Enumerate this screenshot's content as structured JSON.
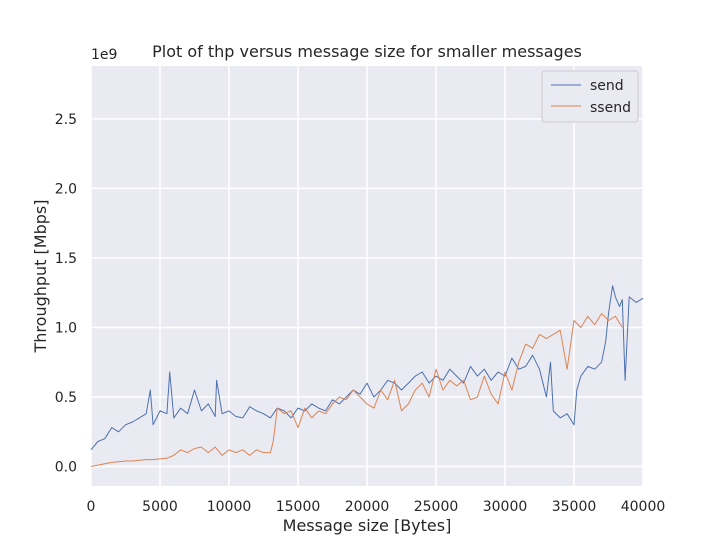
{
  "chart_data": {
    "type": "line",
    "title": "Plot of thp versus message size for smaller messages",
    "xlabel": "Message size [Bytes]",
    "ylabel": "Throughput [Mbps]",
    "y_offset_label": "1e9",
    "xlim": [
      0,
      40000
    ],
    "ylim": [
      -0.14,
      2.88
    ],
    "x_ticks": [
      0,
      5000,
      10000,
      15000,
      20000,
      25000,
      30000,
      35000,
      40000
    ],
    "x_tick_labels": [
      "0",
      "5000",
      "10000",
      "15000",
      "20000",
      "25000",
      "30000",
      "35000",
      "40000"
    ],
    "y_ticks": [
      0.0,
      0.5,
      1.0,
      1.5,
      2.0,
      2.5
    ],
    "y_tick_labels": [
      "0.0",
      "0.5",
      "1.0",
      "1.5",
      "2.0",
      "2.5"
    ],
    "grid": true,
    "legend_position": "top-right",
    "colors": {
      "plot_bg": "#eaeaf2",
      "grid": "#ffffff",
      "send": "#4c72b0",
      "ssend": "#dd8452",
      "text": "#262626"
    },
    "series": [
      {
        "name": "send",
        "x": [
          0,
          500,
          1000,
          1500,
          2000,
          2500,
          3000,
          3500,
          4000,
          4300,
          4500,
          5000,
          5500,
          5700,
          6000,
          6500,
          7000,
          7500,
          8000,
          8500,
          9000,
          9100,
          9500,
          10000,
          10500,
          11000,
          11500,
          12000,
          12500,
          13000,
          13500,
          14000,
          14500,
          15000,
          15500,
          16000,
          16500,
          17000,
          17500,
          18000,
          18500,
          19000,
          19500,
          20000,
          20500,
          21000,
          21500,
          22000,
          22500,
          23000,
          23500,
          24000,
          24500,
          25000,
          25500,
          26000,
          26500,
          27000,
          27500,
          28000,
          28500,
          29000,
          29500,
          30000,
          30500,
          31000,
          31500,
          32000,
          32500,
          33000,
          33300,
          33500,
          34000,
          34500,
          35000,
          35200,
          35500,
          36000,
          36500,
          37000,
          37300,
          37500,
          37800,
          38000,
          38300,
          38500,
          38700,
          39000,
          39500,
          40000
        ],
        "values": [
          0.12,
          0.18,
          0.2,
          0.28,
          0.25,
          0.3,
          0.32,
          0.35,
          0.38,
          0.55,
          0.3,
          0.4,
          0.38,
          0.68,
          0.35,
          0.42,
          0.38,
          0.55,
          0.4,
          0.45,
          0.36,
          0.62,
          0.38,
          0.4,
          0.36,
          0.35,
          0.43,
          0.4,
          0.38,
          0.35,
          0.42,
          0.4,
          0.35,
          0.42,
          0.4,
          0.45,
          0.42,
          0.4,
          0.48,
          0.45,
          0.5,
          0.55,
          0.52,
          0.6,
          0.5,
          0.55,
          0.62,
          0.6,
          0.55,
          0.6,
          0.65,
          0.68,
          0.6,
          0.65,
          0.62,
          0.7,
          0.65,
          0.6,
          0.72,
          0.65,
          0.7,
          0.62,
          0.68,
          0.65,
          0.78,
          0.7,
          0.72,
          0.8,
          0.7,
          0.5,
          0.75,
          0.4,
          0.35,
          0.38,
          0.3,
          0.55,
          0.65,
          0.72,
          0.7,
          0.75,
          0.9,
          1.1,
          1.3,
          1.22,
          1.15,
          1.2,
          0.62,
          1.22,
          1.18,
          1.21
        ]
      },
      {
        "name": "ssend",
        "x": [
          0,
          500,
          1000,
          1500,
          2000,
          2500,
          3000,
          3500,
          4000,
          4500,
          5000,
          5500,
          6000,
          6500,
          7000,
          7500,
          8000,
          8500,
          9000,
          9500,
          10000,
          10500,
          11000,
          11500,
          12000,
          12500,
          13000,
          13200,
          13500,
          14000,
          14500,
          15000,
          15500,
          16000,
          16500,
          17000,
          17500,
          18000,
          18500,
          19000,
          19500,
          20000,
          20500,
          21000,
          21500,
          22000,
          22500,
          23000,
          23500,
          24000,
          24500,
          25000,
          25500,
          26000,
          26500,
          27000,
          27500,
          28000,
          28500,
          29000,
          29500,
          30000,
          30500,
          31000,
          31500,
          32000,
          32500,
          33000,
          33500,
          34000,
          34500,
          35000,
          35500,
          36000,
          36500,
          37000,
          37500,
          38000,
          38500
        ],
        "values": [
          0.0,
          0.01,
          0.02,
          0.03,
          0.035,
          0.04,
          0.04,
          0.045,
          0.05,
          0.05,
          0.055,
          0.06,
          0.08,
          0.12,
          0.1,
          0.13,
          0.14,
          0.1,
          0.14,
          0.08,
          0.12,
          0.1,
          0.12,
          0.08,
          0.12,
          0.1,
          0.1,
          0.18,
          0.42,
          0.38,
          0.4,
          0.28,
          0.42,
          0.35,
          0.4,
          0.38,
          0.45,
          0.5,
          0.48,
          0.55,
          0.5,
          0.45,
          0.42,
          0.55,
          0.48,
          0.62,
          0.4,
          0.45,
          0.55,
          0.6,
          0.5,
          0.7,
          0.55,
          0.62,
          0.58,
          0.62,
          0.48,
          0.5,
          0.65,
          0.52,
          0.45,
          0.68,
          0.55,
          0.75,
          0.88,
          0.85,
          0.95,
          0.92,
          0.95,
          0.98,
          0.7,
          1.05,
          1.0,
          1.08,
          1.02,
          1.1,
          1.05,
          1.08,
          1.0
        ]
      }
    ]
  }
}
